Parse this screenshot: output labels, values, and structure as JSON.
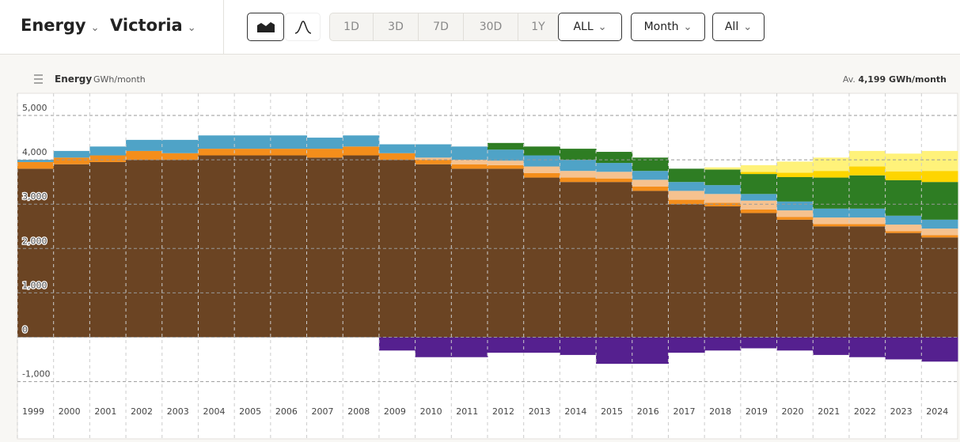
{
  "header": {
    "metric": "Energy",
    "region": "Victoria",
    "ranges": [
      "1D",
      "3D",
      "7D",
      "30D",
      "1Y",
      "ALL"
    ],
    "interval": "Month",
    "period": "All"
  },
  "chart_data": {
    "type": "stacked-bar",
    "title": "Energy",
    "unit": "GWh/month",
    "average_label": "Av.",
    "average": "4,199 GWh/month",
    "categories": [
      "1999",
      "2000",
      "2001",
      "2002",
      "2003",
      "2004",
      "2005",
      "2006",
      "2007",
      "2008",
      "2009",
      "2010",
      "2011",
      "2012",
      "2013",
      "2014",
      "2015",
      "2016",
      "2017",
      "2018",
      "2019",
      "2020",
      "2021",
      "2022",
      "2023",
      "2024"
    ],
    "series": [
      {
        "color": "#6b4423",
        "values": [
          3800,
          3900,
          3950,
          4000,
          4000,
          4100,
          4100,
          4100,
          4050,
          4100,
          4000,
          3900,
          3800,
          3800,
          3600,
          3500,
          3500,
          3300,
          3000,
          2950,
          2800,
          2650,
          2500,
          2500,
          2350,
          2250
        ]
      },
      {
        "color": "#f48e1b",
        "values": [
          150,
          150,
          150,
          200,
          150,
          150,
          150,
          150,
          200,
          200,
          150,
          100,
          100,
          80,
          100,
          100,
          80,
          100,
          100,
          80,
          80,
          60,
          50,
          50,
          40,
          50
        ]
      },
      {
        "color": "#f6c28f",
        "values": [
          0,
          0,
          0,
          0,
          0,
          0,
          0,
          0,
          0,
          0,
          0,
          50,
          100,
          100,
          150,
          150,
          150,
          150,
          200,
          200,
          200,
          150,
          150,
          150,
          150,
          150
        ]
      },
      {
        "color": "#4fa3c7",
        "values": [
          50,
          150,
          200,
          250,
          300,
          300,
          300,
          300,
          250,
          250,
          200,
          300,
          300,
          250,
          250,
          250,
          200,
          200,
          200,
          200,
          150,
          200,
          200,
          200,
          200,
          200
        ]
      },
      {
        "color": "#2e7d23",
        "values": [
          0,
          0,
          0,
          0,
          0,
          0,
          0,
          0,
          0,
          0,
          0,
          0,
          0,
          150,
          200,
          250,
          250,
          300,
          300,
          350,
          450,
          550,
          700,
          750,
          800,
          850
        ]
      },
      {
        "color": "#fed500",
        "values": [
          0,
          0,
          0,
          0,
          0,
          0,
          0,
          0,
          0,
          0,
          0,
          0,
          0,
          0,
          0,
          0,
          0,
          0,
          0,
          0,
          50,
          100,
          150,
          200,
          200,
          250
        ]
      },
      {
        "color": "#fff27a",
        "values": [
          0,
          0,
          0,
          0,
          0,
          0,
          0,
          0,
          0,
          0,
          0,
          0,
          0,
          0,
          0,
          0,
          0,
          0,
          0,
          50,
          150,
          250,
          300,
          350,
          400,
          450
        ]
      },
      {
        "color": "#55208f",
        "values": [
          0,
          0,
          0,
          0,
          0,
          0,
          0,
          0,
          0,
          0,
          -300,
          -450,
          -450,
          -350,
          -350,
          -400,
          -600,
          -600,
          -350,
          -300,
          -250,
          -300,
          -400,
          -450,
          -500,
          -550
        ]
      }
    ],
    "ylim": [
      -1400,
      5500
    ],
    "yticks": [
      {
        "value": -1000,
        "label": "-1,000"
      },
      0,
      {
        "value": 1000,
        "label": "1,000"
      },
      {
        "value": 2000,
        "label": "2,000"
      },
      {
        "value": 3000,
        "label": "3,000"
      },
      {
        "value": 4000,
        "label": "4,000"
      },
      {
        "value": 5000,
        "label": "5,000"
      }
    ],
    "grid": true
  }
}
